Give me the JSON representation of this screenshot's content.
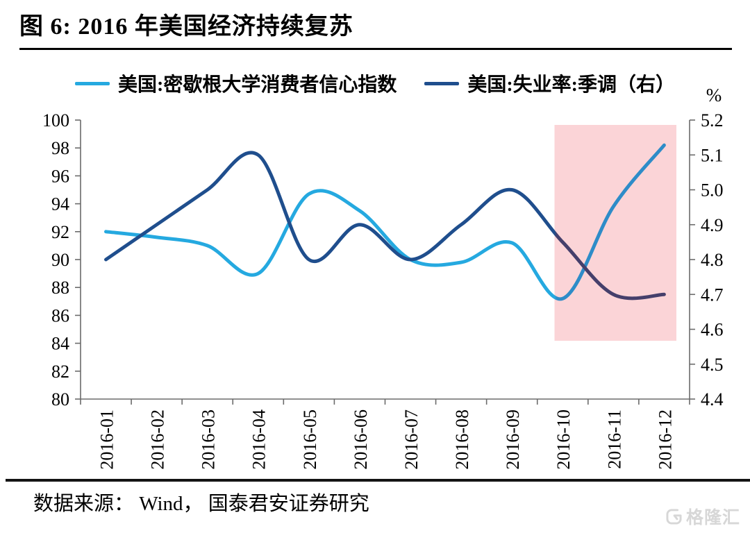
{
  "header": {
    "title": "图 6:  2016 年美国经济持续复苏"
  },
  "legend": {
    "items": [
      {
        "label": "美国:密歇根大学消费者信心指数",
        "color": "#25A9E0"
      },
      {
        "label": "美国:失业率:季调（右）",
        "color": "#1F4E8D"
      }
    ]
  },
  "chart_data": {
    "type": "line",
    "title": "图 6: 2016 年美国经济持续复苏",
    "categories": [
      "2016-01",
      "2016-02",
      "2016-03",
      "2016-04",
      "2016-05",
      "2016-06",
      "2016-07",
      "2016-08",
      "2016-09",
      "2016-10",
      "2016-11",
      "2016-12"
    ],
    "series": [
      {
        "name": "美国:密歇根大学消费者信心指数",
        "axis": "left",
        "color": "#25A9E0",
        "color_in_highlight": "#2E8CC8",
        "values": [
          92.0,
          91.6,
          91.0,
          89.0,
          94.7,
          93.5,
          90.0,
          89.8,
          91.2,
          87.2,
          93.8,
          98.2
        ]
      },
      {
        "name": "美国:失业率:季调（右）",
        "axis": "right",
        "color": "#1F4E8D",
        "color_in_highlight": "#453F6B",
        "values": [
          4.8,
          4.9,
          5.0,
          5.1,
          4.8,
          4.9,
          4.8,
          4.9,
          5.0,
          4.85,
          4.7,
          4.7
        ]
      }
    ],
    "left_axis": {
      "min": 80,
      "max": 100,
      "ticks": [
        100,
        98,
        96,
        94,
        92,
        90,
        88,
        86,
        84,
        82,
        80
      ]
    },
    "right_axis": {
      "min": 4.4,
      "max": 5.2,
      "unit": "%",
      "ticks": [
        "5.2",
        "5.1",
        "5.0",
        "4.9",
        "4.8",
        "4.7",
        "4.6",
        "4.5",
        "4.4"
      ]
    },
    "highlight": {
      "from": "2016-10",
      "to": "2016-12",
      "color": "#FBD4D7"
    },
    "grid": false,
    "legend_position": "top",
    "line_smoothing": "spline"
  },
  "footer": {
    "source": "数据来源： Wind， 国泰君安证券研究"
  },
  "watermark": {
    "text": "格隆汇"
  }
}
